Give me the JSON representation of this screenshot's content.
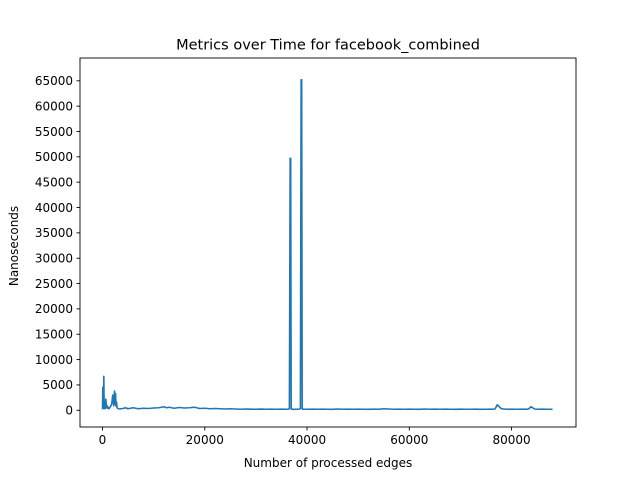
{
  "chart_data": {
    "type": "line",
    "title": "Metrics over Time for facebook_combined",
    "xlabel": "Number of processed edges",
    "ylabel": "Nanoseconds",
    "xlim": [
      -4400,
      92600
    ],
    "ylim": [
      -3300,
      69500
    ],
    "x_ticks": [
      0,
      20000,
      40000,
      60000,
      80000
    ],
    "y_ticks": [
      0,
      5000,
      10000,
      15000,
      20000,
      25000,
      30000,
      35000,
      40000,
      45000,
      50000,
      55000,
      60000,
      65000
    ],
    "grid": false,
    "line_color": "#1f77b4",
    "series": [
      {
        "x": [
          0,
          60,
          120,
          200,
          260,
          320,
          420,
          520,
          650,
          780,
          900,
          1000,
          1100,
          1250,
          1400,
          1600,
          1800,
          2000,
          2200,
          2350,
          2450,
          2550,
          2650,
          2750,
          2850,
          2950,
          3100,
          3300,
          3600,
          4000,
          4500,
          5000,
          5500,
          6000,
          7000,
          8000,
          9000,
          10000,
          11000,
          12000,
          12500,
          13000,
          14000,
          15000,
          16000,
          17000,
          18000,
          19000,
          20000,
          21000,
          22000,
          23000,
          24000,
          25000,
          26000,
          27000,
          28000,
          29000,
          30000,
          31000,
          32000,
          33000,
          34000,
          35000,
          35800,
          36300,
          36550,
          36700,
          36800,
          36900,
          37000,
          37100,
          37300,
          37600,
          38000,
          38400,
          38700,
          38850,
          38950,
          39050,
          39150,
          39300,
          39600,
          40000,
          41000,
          42000,
          43000,
          44000,
          45000,
          46000,
          47000,
          48000,
          49000,
          50000,
          51000,
          52000,
          53000,
          54000,
          55000,
          56000,
          57000,
          58000,
          59000,
          60000,
          61000,
          62000,
          63000,
          64000,
          65000,
          66000,
          67000,
          68000,
          69000,
          70000,
          71000,
          72000,
          73000,
          74000,
          75000,
          76000,
          76500,
          76800,
          77200,
          78000,
          79000,
          80000,
          81000,
          82000,
          83000,
          83400,
          83800,
          84500,
          85000,
          86000,
          87000,
          88000
        ],
        "y": [
          200,
          4500,
          300,
          1500,
          6700,
          600,
          400,
          300,
          2200,
          500,
          900,
          400,
          600,
          300,
          500,
          800,
          1200,
          3000,
          900,
          3800,
          1200,
          3300,
          800,
          1600,
          500,
          400,
          300,
          250,
          300,
          350,
          500,
          300,
          400,
          500,
          300,
          400,
          350,
          450,
          500,
          700,
          500,
          600,
          400,
          550,
          450,
          500,
          600,
          350,
          400,
          300,
          350,
          300,
          250,
          300,
          250,
          200,
          250,
          220,
          200,
          230,
          200,
          220,
          200,
          210,
          200,
          220,
          300,
          49700,
          49700,
          300,
          200,
          220,
          200,
          180,
          200,
          220,
          300,
          65200,
          65200,
          300,
          200,
          210,
          200,
          200,
          220,
          200,
          210,
          200,
          190,
          250,
          200,
          210,
          200,
          220,
          200,
          190,
          210,
          200,
          300,
          250,
          200,
          210,
          200,
          220,
          200,
          190,
          250,
          200,
          210,
          200,
          220,
          200,
          190,
          210,
          200,
          200,
          210,
          190,
          200,
          220,
          200,
          300,
          1100,
          300,
          200,
          210,
          200,
          220,
          200,
          300,
          700,
          250,
          200,
          210,
          200,
          190
        ]
      }
    ]
  }
}
